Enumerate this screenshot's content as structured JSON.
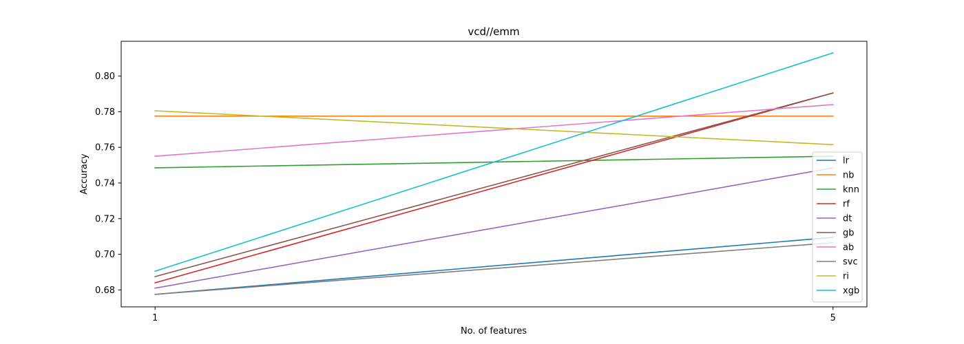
{
  "chart_data": {
    "type": "line",
    "title": "vcd//emm",
    "xlabel": "No. of features",
    "ylabel": "Accuracy",
    "x": [
      1,
      5
    ],
    "x_ticks": [
      "1",
      "5"
    ],
    "y_ticks": [
      "0.68",
      "0.70",
      "0.72",
      "0.74",
      "0.76",
      "0.78",
      "0.80"
    ],
    "xlim": [
      0.8,
      5.2
    ],
    "ylim": [
      0.6705,
      0.8195
    ],
    "grid": false,
    "legend_position": "lower right",
    "series": [
      {
        "name": "lr",
        "color": "#1f77b4",
        "values": [
          0.6775,
          0.7095
        ]
      },
      {
        "name": "nb",
        "color": "#ff7f0e",
        "values": [
          0.7775,
          0.7775
        ]
      },
      {
        "name": "knn",
        "color": "#2ca02c",
        "values": [
          0.7485,
          0.755
        ]
      },
      {
        "name": "rf",
        "color": "#d62728",
        "values": [
          0.684,
          0.7905
        ]
      },
      {
        "name": "dt",
        "color": "#9467bd",
        "values": [
          0.681,
          0.7485
        ]
      },
      {
        "name": "gb",
        "color": "#8c564b",
        "values": [
          0.6875,
          0.7905
        ]
      },
      {
        "name": "ab",
        "color": "#e377c2",
        "values": [
          0.755,
          0.784
        ]
      },
      {
        "name": "svc",
        "color": "#7f7f7f",
        "values": [
          0.6775,
          0.7065
        ]
      },
      {
        "name": "ri",
        "color": "#bcbd22",
        "values": [
          0.7805,
          0.7615
        ]
      },
      {
        "name": "xgb",
        "color": "#17becf",
        "values": [
          0.6905,
          0.813
        ]
      }
    ]
  }
}
